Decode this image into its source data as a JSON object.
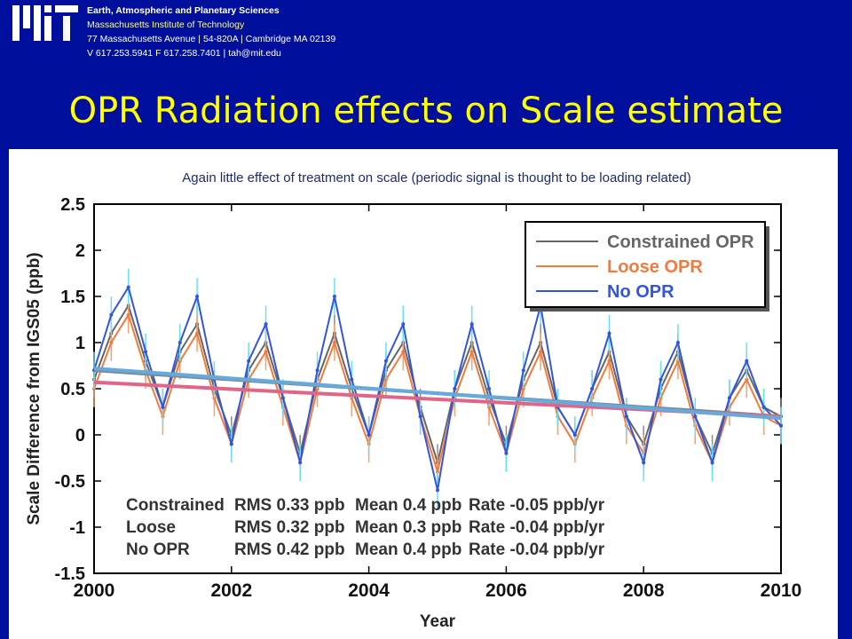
{
  "header": {
    "dept": "Earth, Atmospheric and Planetary Sciences",
    "institute": "Massachusetts Institute of Technology",
    "address": "77 Massachusetts Avenue | 54-820A | Cambridge MA 02139",
    "contact": "V 617.253.5941 F 617.258.7401 | tah@mit.edu"
  },
  "slide": {
    "title": "OPR Radiation effects on Scale estimate",
    "subtitle": "Again little effect of treatment on scale (periodic signal is thought to be loading related)"
  },
  "chart_data": {
    "type": "line",
    "xlabel": "Year",
    "ylabel": "Scale Difference from IGS05 (ppb)",
    "xlim": [
      2000,
      2010
    ],
    "ylim": [
      -1.5,
      2.5
    ],
    "x_ticks": [
      2000,
      2002,
      2004,
      2006,
      2008,
      2010
    ],
    "y_ticks": [
      2.5,
      2,
      1.5,
      1,
      0.5,
      0,
      -0.5,
      -1,
      -1.5
    ],
    "grid": false,
    "legend_position": "top-right",
    "series": [
      {
        "name": "Constrained OPR",
        "color": "#666666",
        "x": [
          2000.0,
          2000.25,
          2000.5,
          2000.75,
          2001.0,
          2001.25,
          2001.5,
          2001.75,
          2002.0,
          2002.25,
          2002.5,
          2002.75,
          2003.0,
          2003.25,
          2003.5,
          2003.75,
          2004.0,
          2004.25,
          2004.5,
          2004.75,
          2005.0,
          2005.25,
          2005.5,
          2005.75,
          2006.0,
          2006.25,
          2006.5,
          2006.75,
          2007.0,
          2007.25,
          2007.5,
          2007.75,
          2008.0,
          2008.25,
          2008.5,
          2008.75,
          2009.0,
          2009.25,
          2009.5,
          2009.75,
          2010.0
        ],
        "y": [
          0.6,
          1.1,
          1.4,
          0.8,
          0.3,
          0.9,
          1.2,
          0.5,
          0.0,
          0.7,
          1.0,
          0.4,
          -0.2,
          0.6,
          1.1,
          0.5,
          0.0,
          0.7,
          1.0,
          0.3,
          -0.3,
          0.5,
          1.0,
          0.4,
          -0.1,
          0.6,
          1.0,
          0.3,
          0.0,
          0.5,
          0.9,
          0.2,
          -0.1,
          0.5,
          0.9,
          0.2,
          -0.2,
          0.4,
          0.7,
          0.3,
          0.2
        ],
        "trend": [
          0.7,
          0.2
        ]
      },
      {
        "name": "Loose OPR",
        "color": "#f47a3b",
        "x": [
          2000.0,
          2000.25,
          2000.5,
          2000.75,
          2001.0,
          2001.25,
          2001.5,
          2001.75,
          2002.0,
          2002.25,
          2002.5,
          2002.75,
          2003.0,
          2003.25,
          2003.5,
          2003.75,
          2004.0,
          2004.25,
          2004.5,
          2004.75,
          2005.0,
          2005.25,
          2005.5,
          2005.75,
          2006.0,
          2006.25,
          2006.5,
          2006.75,
          2007.0,
          2007.25,
          2007.5,
          2007.75,
          2008.0,
          2008.25,
          2008.5,
          2008.75,
          2009.0,
          2009.25,
          2009.5,
          2009.75,
          2010.0
        ],
        "y": [
          0.5,
          1.0,
          1.3,
          0.7,
          0.2,
          0.8,
          1.1,
          0.4,
          -0.1,
          0.6,
          0.9,
          0.3,
          -0.3,
          0.5,
          1.0,
          0.4,
          -0.1,
          0.6,
          0.9,
          0.2,
          -0.4,
          0.4,
          0.9,
          0.3,
          -0.2,
          0.5,
          0.9,
          0.2,
          -0.1,
          0.4,
          0.8,
          0.1,
          -0.2,
          0.4,
          0.8,
          0.1,
          -0.3,
          0.3,
          0.6,
          0.2,
          0.1
        ],
        "trend": [
          0.57,
          0.2
        ]
      },
      {
        "name": "No OPR",
        "color": "#3355dd",
        "x": [
          2000.0,
          2000.25,
          2000.5,
          2000.75,
          2001.0,
          2001.25,
          2001.5,
          2001.75,
          2002.0,
          2002.25,
          2002.5,
          2002.75,
          2003.0,
          2003.25,
          2003.5,
          2003.75,
          2004.0,
          2004.25,
          2004.5,
          2004.75,
          2005.0,
          2005.25,
          2005.5,
          2005.75,
          2006.0,
          2006.25,
          2006.5,
          2006.75,
          2007.0,
          2007.25,
          2007.5,
          2007.75,
          2008.0,
          2008.25,
          2008.5,
          2008.75,
          2009.0,
          2009.25,
          2009.5,
          2009.75,
          2010.0
        ],
        "y": [
          0.7,
          1.3,
          1.6,
          0.9,
          0.3,
          1.0,
          1.5,
          0.6,
          -0.1,
          0.8,
          1.2,
          0.4,
          -0.3,
          0.7,
          1.5,
          0.6,
          0.0,
          0.8,
          1.2,
          0.2,
          -0.6,
          0.5,
          1.2,
          0.5,
          -0.2,
          0.7,
          1.4,
          0.3,
          0.0,
          0.5,
          1.1,
          0.2,
          -0.3,
          0.6,
          1.0,
          0.2,
          -0.3,
          0.4,
          0.8,
          0.3,
          0.1
        ],
        "trend": [
          0.72,
          0.18
        ]
      }
    ],
    "annotations": [
      {
        "label": "Constrained",
        "rms": "RMS 0.33 ppb",
        "mean": "Mean 0.4 ppb",
        "rate": "Rate -0.05 ppb/yr"
      },
      {
        "label": "Loose",
        "rms": "RMS 0.32 ppb",
        "mean": "Mean 0.3 ppb",
        "rate": "Rate -0.04 ppb/yr"
      },
      {
        "label": "No OPR",
        "rms": "RMS 0.42 ppb",
        "mean": "Mean 0.4 ppb",
        "rate": "Rate -0.04 ppb/yr"
      }
    ]
  }
}
